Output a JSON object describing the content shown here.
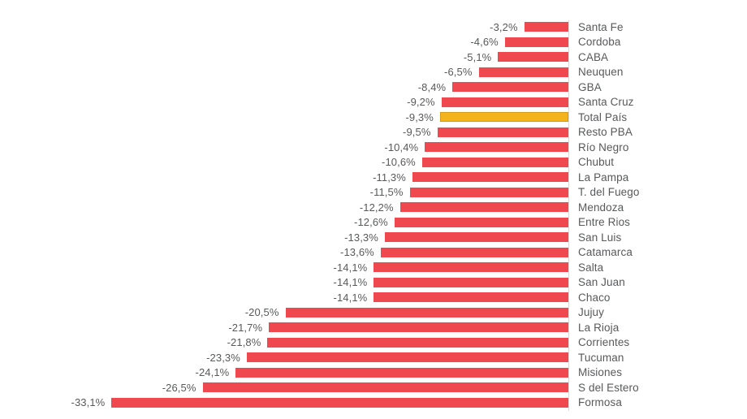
{
  "chart_data": {
    "type": "bar",
    "orientation": "horizontal",
    "title": "",
    "xlabel": "",
    "ylabel": "",
    "xlim": [
      -35,
      0
    ],
    "grid": false,
    "legend": "none",
    "categories": [
      "Santa Fe",
      "Cordoba",
      "CABA",
      "Neuquen",
      "GBA",
      "Santa Cruz",
      "Total País",
      "Resto PBA",
      "Río Negro",
      "Chubut",
      "La Pampa",
      "T. del Fuego",
      "Mendoza",
      "Entre Rios",
      "San Luis",
      "Catamarca",
      "Salta",
      "San Juan",
      "Chaco",
      "Jujuy",
      "La Rioja",
      "Corrientes",
      "Tucuman",
      "Misiones",
      "S del Estero",
      "Formosa"
    ],
    "values": [
      -3.2,
      -4.6,
      -5.1,
      -6.5,
      -8.4,
      -9.2,
      -9.3,
      -9.5,
      -10.4,
      -10.6,
      -11.3,
      -11.5,
      -12.2,
      -12.6,
      -13.3,
      -13.6,
      -14.1,
      -14.1,
      -14.1,
      -20.5,
      -21.7,
      -21.8,
      -23.3,
      -24.1,
      -26.5,
      -33.1
    ],
    "value_labels": [
      "-3,2%",
      "-4,6%",
      "-5,1%",
      "-6,5%",
      "-8,4%",
      "-9,2%",
      "-9,3%",
      "-9,5%",
      "-10,4%",
      "-10,6%",
      "-11,3%",
      "-11,5%",
      "-12,2%",
      "-12,6%",
      "-13,3%",
      "-13,6%",
      "-14,1%",
      "-14,1%",
      "-14,1%",
      "-20,5%",
      "-21,7%",
      "-21,8%",
      "-23,3%",
      "-24,1%",
      "-26,5%",
      "-33,1%"
    ],
    "highlight_category": "Total País",
    "highlight_index": 6,
    "bar_color": "#f0484f",
    "highlight_color": "#f2b31c",
    "highlight_border_color": "#d89b15",
    "axis_color": "#dbdbdb",
    "text_color": "#58595b"
  }
}
